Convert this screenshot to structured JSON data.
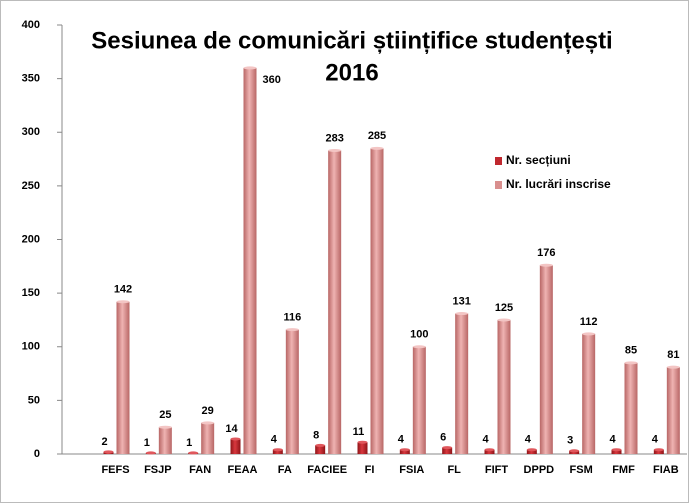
{
  "chart_data": {
    "type": "bar",
    "title": [
      "Sesiunea de comunicări științifice studențești",
      "2016"
    ],
    "categories": [
      null,
      "FEFS",
      "FSJP",
      "FAN",
      "FEAA",
      "FA",
      "FACIEE",
      "FI",
      "FSIA",
      "FL",
      "FIFT",
      "DPPD",
      "FSM",
      "FMF",
      "FIAB"
    ],
    "series": [
      {
        "name": "Nr. secțiuni",
        "color": "#c0282e",
        "values": [
          null,
          2,
          1,
          1,
          14,
          4,
          8,
          11,
          4,
          6,
          4,
          4,
          3,
          4,
          4
        ]
      },
      {
        "name": "Nr. lucrări inscrise",
        "color": "#d98f8e",
        "values": [
          null,
          142,
          25,
          29,
          360,
          116,
          283,
          285,
          100,
          131,
          125,
          176,
          112,
          85,
          81
        ]
      }
    ],
    "ylim": [
      0,
      400
    ],
    "yticks": [
      0,
      50,
      100,
      150,
      200,
      250,
      300,
      350,
      400
    ],
    "legend": "right"
  }
}
